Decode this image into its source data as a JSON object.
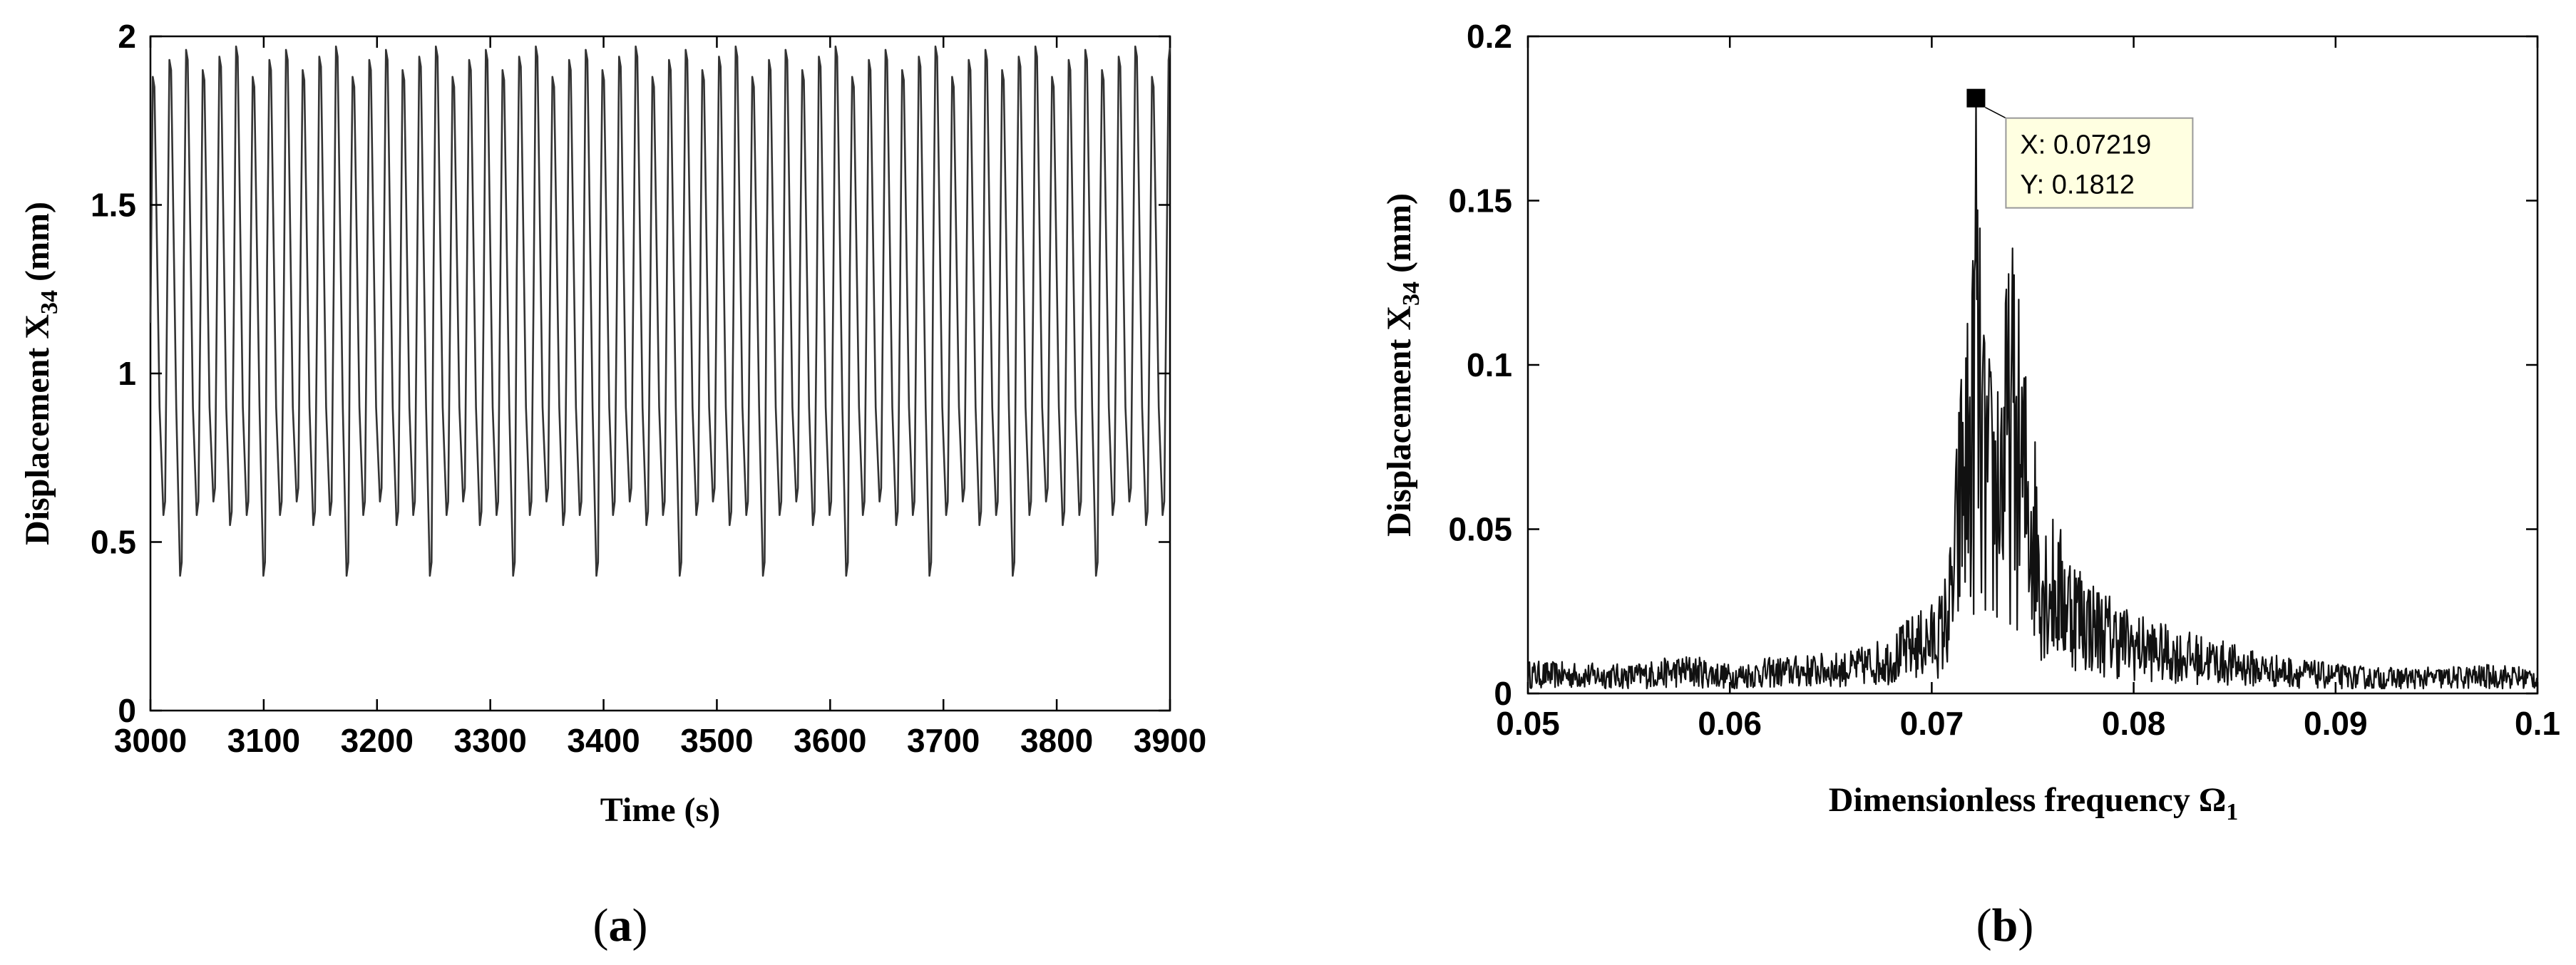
{
  "chart_data": [
    {
      "id": "a",
      "type": "line",
      "panel_label": "a",
      "xlabel": "Time (s)",
      "ylabel_main": "Displacement X",
      "ylabel_sub": "34",
      "ylabel_unit": " (mm)",
      "xlim": [
        3000,
        3900
      ],
      "ylim": [
        0,
        2
      ],
      "xticks": [
        3000,
        3100,
        3200,
        3300,
        3400,
        3500,
        3600,
        3700,
        3800,
        3900
      ],
      "xtick_labels": [
        "3000",
        "3100",
        "3200",
        "3300",
        "3400",
        "3500",
        "3600",
        "3700",
        "3800",
        "3900"
      ],
      "yticks": [
        0,
        0.5,
        1,
        1.5,
        2
      ],
      "ytick_labels": [
        "0",
        "0.5",
        "1",
        "1.5",
        "2"
      ],
      "grid": false,
      "line_color": "#333333",
      "signal": {
        "start": 3000,
        "end": 3900,
        "period_s": 14.7,
        "min_values": [
          0.58,
          0.4,
          0.58,
          0.62,
          0.55
        ],
        "max_values": [
          1.88,
          1.93,
          1.96,
          1.9,
          1.94,
          1.97
        ]
      }
    },
    {
      "id": "b",
      "type": "line",
      "panel_label": "b",
      "xlabel_main": "Dimensionless frequency Ω",
      "xlabel_sub": "1",
      "ylabel_main": "Displacement X",
      "ylabel_sub": "34",
      "ylabel_unit": " (mm)",
      "xlim": [
        0.05,
        0.1
      ],
      "ylim": [
        0,
        0.2
      ],
      "xticks": [
        0.05,
        0.06,
        0.07,
        0.08,
        0.09,
        0.1
      ],
      "xtick_labels": [
        "0.05",
        "0.06",
        "0.07",
        "0.08",
        "0.09",
        "0.1"
      ],
      "yticks": [
        0,
        0.05,
        0.1,
        0.15,
        0.2
      ],
      "ytick_labels": [
        "0",
        "0.05",
        "0.1",
        "0.15",
        "0.2"
      ],
      "grid": false,
      "line_color": "#111111",
      "envelope": {
        "x": [
          0.05,
          0.055,
          0.058,
          0.06,
          0.062,
          0.064,
          0.066,
          0.068,
          0.069,
          0.07,
          0.0705,
          0.071,
          0.0715,
          0.072,
          0.0722,
          0.0725,
          0.073,
          0.0735,
          0.074,
          0.0745,
          0.075,
          0.0755,
          0.076,
          0.077,
          0.078,
          0.079,
          0.08,
          0.082,
          0.084,
          0.086,
          0.088,
          0.09,
          0.092,
          0.095,
          0.098,
          0.1
        ],
        "y": [
          0.01,
          0.009,
          0.012,
          0.009,
          0.011,
          0.012,
          0.013,
          0.018,
          0.024,
          0.028,
          0.032,
          0.05,
          0.11,
          0.13,
          0.1812,
          0.12,
          0.1,
          0.12,
          0.14,
          0.11,
          0.09,
          0.06,
          0.055,
          0.045,
          0.035,
          0.03,
          0.025,
          0.02,
          0.017,
          0.013,
          0.011,
          0.009,
          0.008,
          0.008,
          0.009,
          0.008
        ]
      },
      "datatip": {
        "x": 0.07219,
        "y": 0.1812,
        "x_text": "X: 0.07219",
        "y_text": "Y: 0.1812",
        "box_color": "#ffffe1",
        "marker_color": "#000000"
      }
    }
  ]
}
